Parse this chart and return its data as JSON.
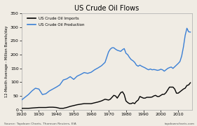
{
  "title": "US Crude Oil Flows",
  "ylabel": "12-Month Average - Million Barrels/day",
  "xlabel_source": "Source: Topdown Charts, Thomson Reuters, EIA",
  "xlabel_source_right": "topdowncharts.com",
  "xlim": [
    1920,
    2018
  ],
  "ylim": [
    0,
    350
  ],
  "yticks": [
    0,
    50,
    100,
    150,
    200,
    250,
    300,
    350
  ],
  "xticks": [
    1920,
    1930,
    1940,
    1950,
    1960,
    1970,
    1980,
    1990,
    2000,
    2010
  ],
  "legend_imports": "US Crude Oil Imports",
  "legend_production": "US Crude Oil Production",
  "color_imports": "#000000",
  "color_production": "#3a7fd5",
  "bg_color": "#f0ece4",
  "production_years": [
    1920,
    1922,
    1924,
    1926,
    1928,
    1930,
    1932,
    1934,
    1936,
    1938,
    1940,
    1942,
    1944,
    1946,
    1948,
    1950,
    1952,
    1954,
    1956,
    1958,
    1960,
    1962,
    1964,
    1966,
    1968,
    1970,
    1971,
    1972,
    1973,
    1974,
    1975,
    1976,
    1977,
    1978,
    1979,
    1980,
    1981,
    1982,
    1983,
    1984,
    1985,
    1986,
    1987,
    1988,
    1989,
    1990,
    1991,
    1992,
    1993,
    1994,
    1995,
    1996,
    1997,
    1998,
    1999,
    2000,
    2001,
    2002,
    2003,
    2004,
    2005,
    2006,
    2007,
    2008,
    2009,
    2010,
    2011,
    2012,
    2013,
    2014,
    2015,
    2016,
    2017
  ],
  "production_vals": [
    35,
    45,
    55,
    68,
    78,
    75,
    55,
    58,
    68,
    75,
    82,
    90,
    108,
    112,
    120,
    110,
    122,
    128,
    135,
    132,
    136,
    145,
    152,
    160,
    172,
    210,
    220,
    225,
    225,
    220,
    216,
    214,
    212,
    218,
    222,
    205,
    200,
    190,
    182,
    178,
    172,
    162,
    158,
    162,
    158,
    155,
    152,
    148,
    145,
    148,
    145,
    146,
    145,
    143,
    144,
    147,
    145,
    140,
    145,
    150,
    153,
    155,
    150,
    156,
    162,
    168,
    175,
    195,
    228,
    270,
    296,
    283,
    282
  ],
  "imports_years": [
    1920,
    1922,
    1924,
    1926,
    1928,
    1930,
    1932,
    1934,
    1936,
    1938,
    1940,
    1942,
    1944,
    1946,
    1948,
    1950,
    1952,
    1954,
    1956,
    1958,
    1960,
    1962,
    1964,
    1966,
    1968,
    1970,
    1971,
    1972,
    1973,
    1974,
    1975,
    1976,
    1977,
    1978,
    1979,
    1980,
    1981,
    1982,
    1983,
    1984,
    1985,
    1986,
    1987,
    1988,
    1989,
    1990,
    1991,
    1992,
    1993,
    1994,
    1995,
    1996,
    1997,
    1998,
    1999,
    2000,
    2001,
    2002,
    2003,
    2004,
    2005,
    2006,
    2007,
    2008,
    2009,
    2010,
    2011,
    2012,
    2013,
    2014,
    2015,
    2016,
    2017
  ],
  "imports_vals": [
    5,
    5,
    5,
    6,
    7,
    8,
    8,
    8,
    9,
    9,
    8,
    5,
    5,
    8,
    12,
    15,
    18,
    20,
    22,
    22,
    22,
    25,
    28,
    32,
    38,
    35,
    38,
    45,
    52,
    50,
    42,
    52,
    62,
    65,
    55,
    32,
    26,
    22,
    22,
    25,
    22,
    30,
    35,
    48,
    45,
    42,
    42,
    45,
    45,
    45,
    46,
    50,
    52,
    48,
    48,
    52,
    56,
    56,
    62,
    72,
    82,
    82,
    82,
    75,
    60,
    60,
    65,
    70,
    75,
    78,
    88,
    90,
    98
  ],
  "linewidth": 1.0
}
